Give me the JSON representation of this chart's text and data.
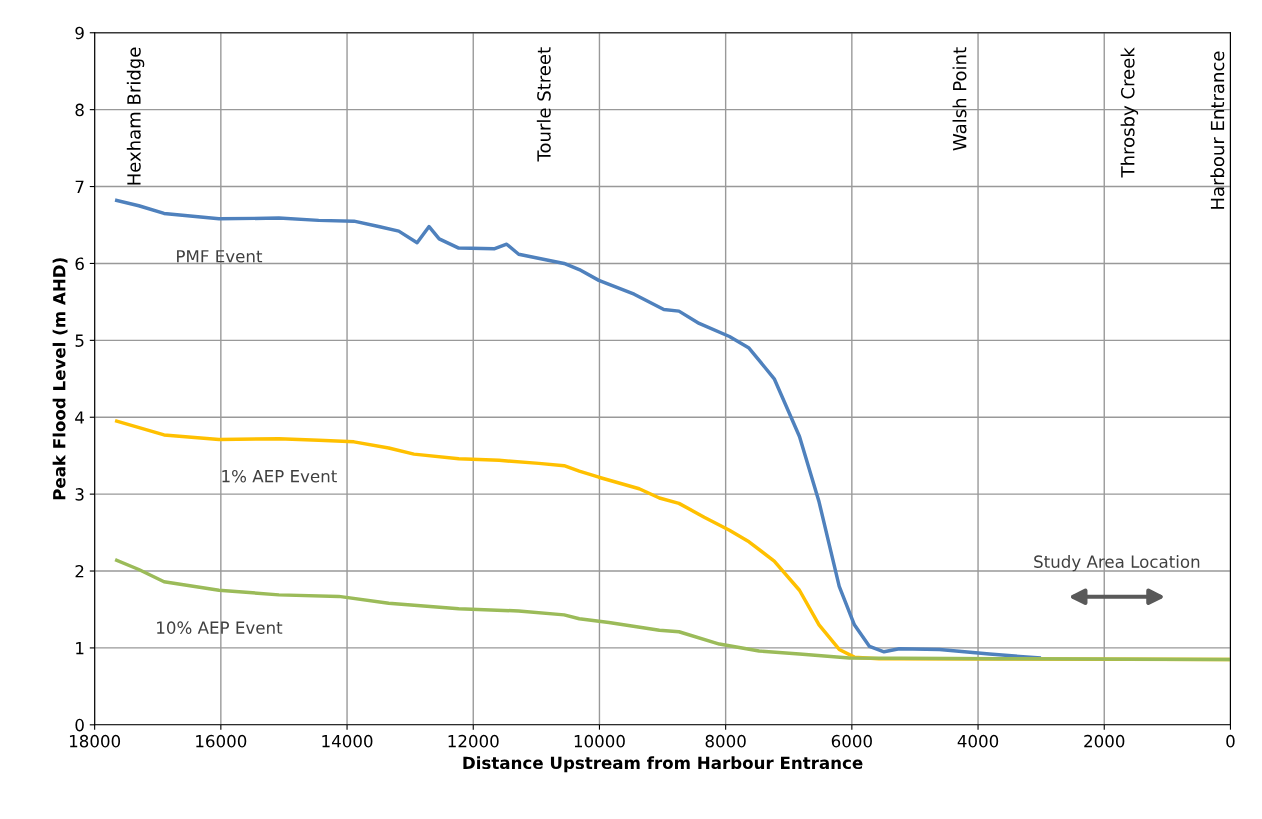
{
  "chart_data": {
    "type": "line",
    "xlabel": "Distance Upstream from Harbour Entrance",
    "ylabel": "Peak Flood Level (m AHD)",
    "xlim": [
      18000,
      0
    ],
    "xticks": [
      18000,
      16000,
      14000,
      12000,
      10000,
      8000,
      6000,
      4000,
      2000,
      0
    ],
    "ylim": [
      0,
      9
    ],
    "yticks": [
      0,
      1,
      2,
      3,
      4,
      5,
      6,
      7,
      8,
      9
    ],
    "grid": true,
    "legend": false,
    "marker": "none",
    "line_style": "solid",
    "series": [
      {
        "name": "PMF Event",
        "color": "#4f81bd",
        "x": [
          17650,
          17300,
          16900,
          16030,
          15080,
          14450,
          13890,
          13500,
          13180,
          12890,
          12700,
          12540,
          12230,
          11670,
          11470,
          11280,
          10560,
          10320,
          10010,
          9450,
          8980,
          8740,
          8420,
          7940,
          7630,
          7230,
          6830,
          6520,
          6200,
          5960,
          5720,
          5490,
          5250,
          4610,
          3820,
          3030
        ],
        "values": [
          6.82,
          6.75,
          6.65,
          6.58,
          6.59,
          6.56,
          6.55,
          6.48,
          6.42,
          6.27,
          6.48,
          6.32,
          6.2,
          6.19,
          6.25,
          6.12,
          6.0,
          5.92,
          5.78,
          5.6,
          5.4,
          5.38,
          5.22,
          5.05,
          4.9,
          4.5,
          3.75,
          2.9,
          1.8,
          1.3,
          1.02,
          0.95,
          0.99,
          0.98,
          0.92,
          0.87
        ]
      },
      {
        "name": "1% AEP Event",
        "color": "#ffc000",
        "x": [
          17650,
          16900,
          16030,
          15080,
          14450,
          13890,
          13340,
          12940,
          12230,
          11590,
          10960,
          10560,
          10320,
          10010,
          9370,
          9050,
          8740,
          8340,
          7940,
          7630,
          7230,
          6830,
          6520,
          6200,
          5960,
          5570,
          0
        ],
        "values": [
          3.95,
          3.77,
          3.71,
          3.72,
          3.7,
          3.68,
          3.6,
          3.52,
          3.46,
          3.44,
          3.4,
          3.37,
          3.3,
          3.22,
          3.07,
          2.95,
          2.88,
          2.7,
          2.53,
          2.38,
          2.13,
          1.75,
          1.3,
          0.98,
          0.88,
          0.86,
          0.85
        ]
      },
      {
        "name": "10% AEP Event",
        "color": "#9bbb59",
        "x": [
          17650,
          17300,
          16900,
          16030,
          15080,
          14130,
          13340,
          12230,
          11280,
          10560,
          10320,
          9850,
          9050,
          8740,
          8100,
          7470,
          6830,
          6040,
          3660,
          0
        ],
        "values": [
          2.14,
          2.02,
          1.86,
          1.75,
          1.69,
          1.67,
          1.58,
          1.51,
          1.48,
          1.43,
          1.38,
          1.33,
          1.23,
          1.21,
          1.05,
          0.96,
          0.92,
          0.87,
          0.86,
          0.85
        ]
      }
    ],
    "annotations": [
      "Hexham Bridge",
      "Tourle Street",
      "Walsh Point",
      "Throsby Creek",
      "Harbour Entrance",
      "Study Area Location"
    ]
  }
}
